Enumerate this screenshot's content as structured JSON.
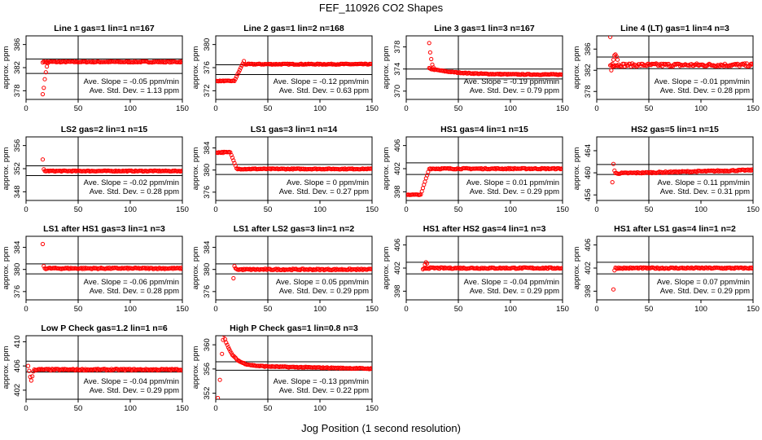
{
  "figure": {
    "title": "FEF_110926  CO2 Shapes",
    "xlabel": "Jog Position (1 second resolution)"
  },
  "colors": {
    "points": "#ff0000",
    "lines": "#000000",
    "background": "#ffffff"
  },
  "chart_data": [
    {
      "type": "scatter",
      "title": "Line 1 gas=1 lin=1 n=167",
      "ylabel": "approx. ppm",
      "xlim": [
        0,
        150
      ],
      "ylim": [
        376.5,
        387.5
      ],
      "yticks": [
        378,
        382,
        386
      ],
      "xticks": [
        0,
        50,
        100,
        150
      ],
      "hlines": [
        383.5,
        381.0
      ],
      "vline": 50,
      "slope_text": "Ave. Slope = -0.05  ppm/min",
      "sd_text": "Ave. Std. Dev. = 1.13  ppm",
      "series": {
        "start": 16,
        "end": 150,
        "level": 383.0,
        "noise": 0.1,
        "early": [
          [
            16,
            377.4
          ],
          [
            17,
            378.5
          ],
          [
            18,
            380.0
          ],
          [
            19,
            381.2
          ],
          [
            20,
            382.2
          ],
          [
            21,
            382.8
          ]
        ]
      }
    },
    {
      "type": "scatter",
      "title": "Line 2 gas=1 lin=2 n=168",
      "ylabel": "approx. ppm",
      "xlim": [
        0,
        150
      ],
      "ylim": [
        370.5,
        381.5
      ],
      "yticks": [
        372,
        376,
        380
      ],
      "xticks": [
        0,
        50,
        100,
        150
      ],
      "hlines": [
        376.5,
        374.8
      ],
      "vline": 50,
      "slope_text": "Ave. Slope = -0.12  ppm/min",
      "sd_text": "Ave. Std. Dev. = 0.63  ppm",
      "series": {
        "start": 0,
        "end": 150,
        "level": 376.6,
        "noise": 0.08,
        "step": {
          "x0": 18,
          "x1": 27,
          "from": 373.7,
          "to": 377.1,
          "decay": 377.1
        }
      }
    },
    {
      "type": "scatter",
      "title": "Line 3 gas=1 lin=3 n=167",
      "ylabel": "approx. ppm",
      "xlim": [
        0,
        150
      ],
      "ylim": [
        368.5,
        380.0
      ],
      "yticks": [
        370,
        374,
        378
      ],
      "xticks": [
        0,
        50,
        100,
        150
      ],
      "hlines": [
        374.0,
        372.2
      ],
      "vline": 50,
      "slope_text": "Ave. Slope = -0.19  ppm/min",
      "sd_text": "Ave. Std. Dev. = 0.79  ppm",
      "series": {
        "start": 22,
        "end": 150,
        "level": 373.0,
        "noise": 0.08,
        "early": [
          [
            22,
            378.7
          ],
          [
            23,
            377.0
          ],
          [
            24,
            375.8
          ],
          [
            25,
            374.8
          ],
          [
            26,
            374.3
          ]
        ],
        "tail_from": 374.1
      }
    },
    {
      "type": "scatter",
      "title": "Line 4 (LT) gas=1 lin=4 n=3",
      "ylabel": "approx. ppm",
      "xlim": [
        0,
        150
      ],
      "ylim": [
        376.5,
        388.5
      ],
      "yticks": [
        378,
        382,
        386
      ],
      "xticks": [
        0,
        50,
        100,
        150
      ],
      "hlines": [
        384.5,
        382.3
      ],
      "vline": 50,
      "slope_text": "Ave. Slope = -0.01  ppm/min",
      "sd_text": "Ave. Std. Dev. = 0.28  ppm",
      "series": {
        "start": 13,
        "end": 150,
        "level": 383.0,
        "noise": 0.3,
        "early": [
          [
            13,
            388.3
          ],
          [
            14,
            382.0
          ],
          [
            15,
            383.2
          ],
          [
            16,
            384.0
          ],
          [
            17,
            384.8
          ],
          [
            18,
            385.0
          ],
          [
            19,
            384.6
          ],
          [
            20,
            384.0
          ]
        ]
      }
    },
    {
      "type": "scatter",
      "title": "LS2 gas=2 lin=1 n=15",
      "ylabel": "approx. ppm",
      "xlim": [
        0,
        150
      ],
      "ylim": [
        346.5,
        357.5
      ],
      "yticks": [
        348,
        352,
        356
      ],
      "xticks": [
        0,
        50,
        100,
        150
      ],
      "hlines": [
        352.5,
        350.8
      ],
      "vline": 50,
      "slope_text": "Ave. Slope = -0.02  ppm/min",
      "sd_text": "Ave. Std. Dev. = 0.28  ppm",
      "series": {
        "start": 18,
        "end": 150,
        "level": 351.6,
        "noise": 0.08,
        "early": [
          [
            16,
            353.6
          ],
          [
            17,
            351.9
          ]
        ]
      }
    },
    {
      "type": "scatter",
      "title": "LS1 gas=3 lin=1 n=14",
      "ylabel": "approx. ppm",
      "xlim": [
        0,
        150
      ],
      "ylim": [
        374.5,
        386.0
      ],
      "yticks": [
        376,
        380,
        384
      ],
      "xticks": [
        0,
        50,
        100,
        150
      ],
      "hlines": [
        381.0,
        379.2
      ],
      "vline": 50,
      "slope_text": "Ave. Slope = 0  ppm/min",
      "sd_text": "Ave. Std. Dev. = 0.27  ppm",
      "series": {
        "start": 0,
        "end": 150,
        "level": 380.2,
        "noise": 0.08,
        "drop": {
          "x0": 14,
          "x1": 20,
          "from": 383.2,
          "to": 380.3
        }
      }
    },
    {
      "type": "scatter",
      "title": "HS1 gas=4 lin=1 n=15",
      "ylabel": "approx. ppm",
      "xlim": [
        0,
        150
      ],
      "ylim": [
        396.5,
        407.5
      ],
      "yticks": [
        398,
        402,
        406
      ],
      "xticks": [
        0,
        50,
        100,
        150
      ],
      "hlines": [
        403.0,
        401.0
      ],
      "vline": 50,
      "slope_text": "Ave. Slope = 0.01  ppm/min",
      "sd_text": "Ave. Std. Dev. = 0.29  ppm",
      "series": {
        "start": 0,
        "end": 150,
        "level": 402.0,
        "noise": 0.1,
        "step": {
          "x0": 14,
          "x1": 22,
          "from": 397.5,
          "to": 402.0,
          "decay": 402.0
        }
      }
    },
    {
      "type": "scatter",
      "title": "HS2 gas=5 lin=1 n=15",
      "ylabel": "approx. ppm",
      "xlim": [
        0,
        150
      ],
      "ylim": [
        455.0,
        466.5
      ],
      "yticks": [
        456,
        460,
        464
      ],
      "xticks": [
        0,
        50,
        100,
        150
      ],
      "hlines": [
        461.5,
        459.7
      ],
      "vline": 50,
      "slope_text": "Ave. Slope = 0.11  ppm/min",
      "sd_text": "Ave. Std. Dev. = 0.31  ppm",
      "series": {
        "start": 18,
        "end": 150,
        "level": 460.2,
        "noise": 0.12,
        "trend": 0.6,
        "early": [
          [
            15,
            458.3
          ],
          [
            16,
            461.6
          ],
          [
            17,
            460.4
          ]
        ]
      }
    },
    {
      "type": "scatter",
      "title": "LS1 after HS1 gas=3 lin=1 n=3",
      "ylabel": "approx. ppm",
      "xlim": [
        0,
        150
      ],
      "ylim": [
        374.5,
        386.0
      ],
      "yticks": [
        376,
        380,
        384
      ],
      "xticks": [
        0,
        50,
        100,
        150
      ],
      "hlines": [
        381.0,
        379.2
      ],
      "vline": 50,
      "slope_text": "Ave. Slope = -0.06  ppm/min",
      "sd_text": "Ave. Std. Dev. = 0.28  ppm",
      "series": {
        "start": 18,
        "end": 150,
        "level": 380.2,
        "noise": 0.12,
        "early": [
          [
            16,
            384.6
          ],
          [
            17,
            380.6
          ]
        ]
      }
    },
    {
      "type": "scatter",
      "title": "LS1 after LS2 gas=3 lin=1 n=2",
      "ylabel": "approx. ppm",
      "xlim": [
        0,
        150
      ],
      "ylim": [
        374.5,
        386.0
      ],
      "yticks": [
        376,
        380,
        384
      ],
      "xticks": [
        0,
        50,
        100,
        150
      ],
      "hlines": [
        381.0,
        379.2
      ],
      "vline": 50,
      "slope_text": "Ave. Slope = 0.05  ppm/min",
      "sd_text": "Ave. Std. Dev. = 0.29  ppm",
      "series": {
        "start": 20,
        "end": 150,
        "level": 380.0,
        "noise": 0.12,
        "early": [
          [
            17,
            378.4
          ],
          [
            18,
            380.6
          ],
          [
            19,
            380.2
          ]
        ]
      }
    },
    {
      "type": "scatter",
      "title": "HS1 after HS2 gas=4 lin=1 n=3",
      "ylabel": "approx. ppm",
      "xlim": [
        0,
        150
      ],
      "ylim": [
        396.5,
        407.5
      ],
      "yticks": [
        398,
        402,
        406
      ],
      "xticks": [
        0,
        50,
        100,
        150
      ],
      "hlines": [
        403.0,
        401.0
      ],
      "vline": 50,
      "slope_text": "Ave. Slope = -0.04  ppm/min",
      "sd_text": "Ave. Std. Dev. = 0.29  ppm",
      "series": {
        "start": 17,
        "end": 150,
        "level": 402.0,
        "noise": 0.12,
        "early": [
          [
            16,
            401.8
          ],
          [
            18,
            402.6
          ],
          [
            19,
            403.0
          ],
          [
            20,
            402.8
          ]
        ]
      }
    },
    {
      "type": "scatter",
      "title": "HS1 after LS1 gas=4 lin=1 n=2",
      "ylabel": "approx. ppm",
      "xlim": [
        0,
        150
      ],
      "ylim": [
        396.5,
        407.5
      ],
      "yticks": [
        398,
        402,
        406
      ],
      "xticks": [
        0,
        50,
        100,
        150
      ],
      "hlines": [
        403.0,
        401.0
      ],
      "vline": 50,
      "slope_text": "Ave. Slope = 0.07  ppm/min",
      "sd_text": "Ave. Std. Dev. = 0.29  ppm",
      "series": {
        "start": 18,
        "end": 150,
        "level": 402.0,
        "noise": 0.12,
        "early": [
          [
            16,
            398.3
          ],
          [
            17,
            401.6
          ]
        ]
      }
    },
    {
      "type": "scatter",
      "title": "Low P Check gas=1.2 lin=1 n=6",
      "ylabel": "approx. ppm",
      "xlim": [
        0,
        150
      ],
      "ylim": [
        400.5,
        411.0
      ],
      "yticks": [
        402,
        406,
        410
      ],
      "xticks": [
        0,
        50,
        100,
        150
      ],
      "hlines": [
        406.8,
        405.0
      ],
      "vline": 50,
      "slope_text": "Ave. Slope = -0.04  ppm/min",
      "sd_text": "Ave. Std. Dev. = 0.29  ppm",
      "series": {
        "start": 8,
        "end": 150,
        "level": 405.4,
        "noise": 0.12,
        "early": [
          [
            2,
            406.0
          ],
          [
            3,
            405.2
          ],
          [
            4,
            404.2
          ],
          [
            5,
            403.6
          ],
          [
            6,
            404.3
          ],
          [
            7,
            405.1
          ]
        ]
      }
    },
    {
      "type": "scatter",
      "title": "High P Check gas=1 lin=0.8 n=3",
      "ylabel": "approx. ppm",
      "xlim": [
        0,
        150
      ],
      "ylim": [
        351.0,
        361.5
      ],
      "yticks": [
        352,
        356,
        360
      ],
      "xticks": [
        0,
        50,
        100,
        150
      ],
      "hlines": [
        357.2,
        355.8
      ],
      "vline": 50,
      "slope_text": "Ave. Slope = -0.13  ppm/min",
      "sd_text": "Ave. Std. Dev. = 0.22  ppm",
      "series": {
        "start": 8,
        "end": 150,
        "level": 356.3,
        "noise": 0.08,
        "decay_from": 361.3,
        "decay_tau": 8,
        "trend": -0.5,
        "early": [
          [
            2,
            351.2
          ],
          [
            4,
            354.2
          ],
          [
            6,
            358.5
          ],
          [
            7,
            360.8
          ]
        ]
      }
    }
  ]
}
